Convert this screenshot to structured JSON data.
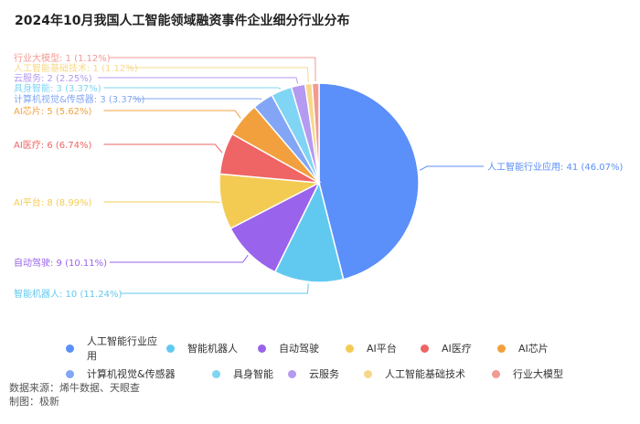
{
  "title": "2024年10月我国人工智能领域融资事件企业细分行业分布",
  "chart_data": {
    "type": "pie",
    "title": "2024年10月我国人工智能领域融资事件企业细分行业分布",
    "slices": [
      {
        "name": "人工智能行业应用",
        "value": 41,
        "percent": "46.07%",
        "color": "#5b8ff9"
      },
      {
        "name": "智能机器人",
        "value": 10,
        "percent": "11.24%",
        "color": "#61c9f0"
      },
      {
        "name": "自动驾驶",
        "value": 9,
        "percent": "10.11%",
        "color": "#9a63eb"
      },
      {
        "name": "AI平台",
        "value": 8,
        "percent": "8.99%",
        "color": "#f3cb53"
      },
      {
        "name": "AI医疗",
        "value": 6,
        "percent": "6.74%",
        "color": "#ef6464"
      },
      {
        "name": "AI芯片",
        "value": 5,
        "percent": "5.62%",
        "color": "#f2a03e"
      },
      {
        "name": "计算机视觉&传感器",
        "value": 3,
        "percent": "3.37%",
        "color": "#82a6f5"
      },
      {
        "name": "具身智能",
        "value": 3,
        "percent": "3.37%",
        "color": "#80d4f4"
      },
      {
        "name": "云服务",
        "value": 2,
        "percent": "2.25%",
        "color": "#b49af0"
      },
      {
        "name": "人工智能基础技术",
        "value": 1,
        "percent": "1.12%",
        "color": "#f6d889"
      },
      {
        "name": "行业大模型",
        "value": 1,
        "percent": "1.12%",
        "color": "#f29a93"
      }
    ],
    "labels": [
      "人工智能行业应用: 41 (46.07%)",
      "智能机器人: 10 (11.24%)",
      "自动驾驶: 9 (10.11%)",
      "AI平台: 8 (8.99%)",
      "AI医疗: 6 (6.74%)",
      "AI芯片: 5 (5.62%)",
      "计算机视觉&传感器: 3 (3.37%)",
      "具身智能: 3 (3.37%)",
      "云服务: 2 (2.25%)",
      "人工智能基础技术: 1 (1.12%)",
      "行业大模型: 1 (1.12%)"
    ],
    "legend_position": "bottom"
  },
  "source": {
    "line1": "数据来源：烯牛数据、天眼查",
    "line2": "制图：极新"
  }
}
